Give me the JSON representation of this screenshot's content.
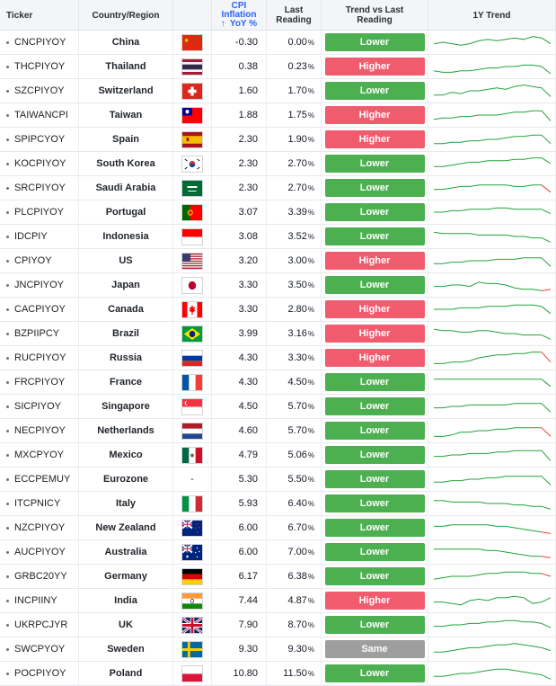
{
  "header": {
    "ticker": "Ticker",
    "country": "Country/Region",
    "cpi_line1": "CPI",
    "cpi_line2": "Inflation",
    "cpi_line3": "YoY %",
    "sort_arrow": "↑",
    "last_line1": "Last",
    "last_line2": "Reading",
    "trend_line1": "Trend vs Last",
    "trend_line2": "Reading",
    "spark": "1Y Trend"
  },
  "colors": {
    "lower": "#4caf50",
    "higher": "#f05b6e",
    "same": "#9e9e9e",
    "spark_up": "#22a33a",
    "spark_down": "#e8412f"
  },
  "rows": [
    {
      "ticker": "CNCPIYOY",
      "country": "China",
      "flag": "china",
      "cpi": "-0.30",
      "last": "0.00",
      "pct": "%",
      "trend": "Lower",
      "spark": [
        6,
        5,
        6,
        7,
        6,
        4,
        3,
        4,
        3,
        2,
        3,
        1,
        2,
        6
      ],
      "tail": "up"
    },
    {
      "ticker": "THCPIYOY",
      "country": "Thailand",
      "flag": "thailand",
      "cpi": "0.38",
      "last": "0.23",
      "pct": "%",
      "trend": "Higher",
      "spark": [
        8,
        9,
        9,
        8,
        8,
        7,
        6,
        6,
        5,
        5,
        4,
        4,
        5,
        10
      ],
      "tail": "up"
    },
    {
      "ticker": "SZCPIYOY",
      "country": "Switzerland",
      "flag": "switzerland",
      "cpi": "1.60",
      "last": "1.70",
      "pct": "%",
      "trend": "Lower",
      "spark": [
        8,
        8,
        6,
        7,
        5,
        5,
        4,
        3,
        4,
        2,
        1,
        2,
        3,
        9
      ],
      "tail": "up"
    },
    {
      "ticker": "TAIWANCPI",
      "country": "Taiwan",
      "flag": "taiwan",
      "cpi": "1.88",
      "last": "1.75",
      "pct": "%",
      "trend": "Higher",
      "spark": [
        8,
        7,
        7,
        6,
        6,
        5,
        5,
        5,
        4,
        3,
        3,
        2,
        2,
        9
      ],
      "tail": "up"
    },
    {
      "ticker": "SPIPCYOY",
      "country": "Spain",
      "flag": "spain",
      "cpi": "2.30",
      "last": "1.90",
      "pct": "%",
      "trend": "Higher",
      "spark": [
        8,
        8,
        7,
        7,
        6,
        6,
        5,
        5,
        4,
        3,
        3,
        2,
        2,
        8
      ],
      "tail": "up"
    },
    {
      "ticker": "KOCPIYOY",
      "country": "South Korea",
      "flag": "south_korea",
      "cpi": "2.30",
      "last": "2.70",
      "pct": "%",
      "trend": "Lower",
      "spark": [
        7,
        7,
        6,
        5,
        4,
        4,
        3,
        3,
        3,
        2,
        2,
        1,
        1,
        5
      ],
      "tail": "up"
    },
    {
      "ticker": "SRCPIYOY",
      "country": "Saudi Arabia",
      "flag": "saudi_arabia",
      "cpi": "2.30",
      "last": "2.70",
      "pct": "%",
      "trend": "Lower",
      "spark": [
        6,
        6,
        5,
        4,
        4,
        3,
        3,
        3,
        3,
        4,
        4,
        3,
        3,
        8
      ],
      "tail": "down"
    },
    {
      "ticker": "PLCPIYOY",
      "country": "Portugal",
      "flag": "portugal",
      "cpi": "3.07",
      "last": "3.39",
      "pct": "%",
      "trend": "Lower",
      "spark": [
        5,
        5,
        4,
        4,
        3,
        3,
        3,
        2,
        2,
        3,
        3,
        3,
        3,
        6
      ],
      "tail": "up"
    },
    {
      "ticker": "IDCPIY",
      "country": "Indonesia",
      "flag": "indonesia",
      "cpi": "3.08",
      "last": "3.52",
      "pct": "%",
      "trend": "Lower",
      "spark": [
        2,
        3,
        3,
        3,
        3,
        4,
        4,
        4,
        4,
        5,
        5,
        6,
        6,
        9
      ],
      "tail": "up"
    },
    {
      "ticker": "CPIYOY",
      "country": "US",
      "flag": "us",
      "cpi": "3.20",
      "last": "3.00",
      "pct": "%",
      "trend": "Higher",
      "spark": [
        7,
        7,
        6,
        6,
        5,
        5,
        5,
        4,
        4,
        4,
        3,
        3,
        3,
        9
      ],
      "tail": "up"
    },
    {
      "ticker": "JNCPIYOY",
      "country": "Japan",
      "flag": "japan",
      "cpi": "3.30",
      "last": "3.50",
      "pct": "%",
      "trend": "Lower",
      "spark": [
        6,
        6,
        5,
        5,
        6,
        3,
        4,
        4,
        5,
        7,
        8,
        8,
        9,
        8
      ],
      "tail": "down"
    },
    {
      "ticker": "CACPIYOY",
      "country": "Canada",
      "flag": "canada",
      "cpi": "3.30",
      "last": "2.80",
      "pct": "%",
      "trend": "Higher",
      "spark": [
        5,
        5,
        5,
        4,
        4,
        4,
        3,
        3,
        3,
        2,
        2,
        2,
        3,
        8
      ],
      "tail": "up"
    },
    {
      "ticker": "BZPIIPCY",
      "country": "Brazil",
      "flag": "brazil",
      "cpi": "3.99",
      "last": "3.16",
      "pct": "%",
      "trend": "Higher",
      "spark": [
        2,
        3,
        3,
        4,
        4,
        3,
        3,
        4,
        5,
        5,
        6,
        6,
        6,
        9
      ],
      "tail": "up"
    },
    {
      "ticker": "RUCPIYOY",
      "country": "Russia",
      "flag": "russia",
      "cpi": "4.30",
      "last": "3.30",
      "pct": "%",
      "trend": "Higher",
      "spark": [
        9,
        9,
        8,
        8,
        7,
        5,
        4,
        3,
        3,
        2,
        2,
        1,
        1,
        8
      ],
      "tail": "down"
    },
    {
      "ticker": "FRCPIYOY",
      "country": "France",
      "flag": "france",
      "cpi": "4.30",
      "last": "4.50",
      "pct": "%",
      "trend": "Lower",
      "spark": [
        3,
        3,
        3,
        3,
        3,
        3,
        3,
        3,
        3,
        3,
        3,
        3,
        3,
        8
      ],
      "tail": "up"
    },
    {
      "ticker": "SICPIYOY",
      "country": "Singapore",
      "flag": "singapore",
      "cpi": "4.50",
      "last": "5.70",
      "pct": "%",
      "trend": "Lower",
      "spark": [
        6,
        6,
        5,
        5,
        4,
        4,
        4,
        4,
        4,
        3,
        3,
        3,
        3,
        9
      ],
      "tail": "up"
    },
    {
      "ticker": "NECPIYOY",
      "country": "Netherlands",
      "flag": "netherlands",
      "cpi": "4.60",
      "last": "5.70",
      "pct": "%",
      "trend": "Lower",
      "spark": [
        9,
        9,
        8,
        6,
        6,
        5,
        5,
        4,
        4,
        3,
        3,
        3,
        3,
        9
      ],
      "tail": "down"
    },
    {
      "ticker": "MXCPYOY",
      "country": "Mexico",
      "flag": "mexico",
      "cpi": "4.79",
      "last": "5.06",
      "pct": "%",
      "trend": "Lower",
      "spark": [
        6,
        6,
        5,
        5,
        4,
        4,
        4,
        3,
        3,
        2,
        2,
        2,
        2,
        9
      ],
      "tail": "up"
    },
    {
      "ticker": "ECCPEMUY",
      "country": "Eurozone",
      "flag": "none",
      "cpi": "5.30",
      "last": "5.50",
      "pct": "%",
      "trend": "Lower",
      "spark": [
        7,
        7,
        6,
        6,
        5,
        5,
        4,
        4,
        3,
        3,
        3,
        3,
        3,
        9
      ],
      "tail": "up"
    },
    {
      "ticker": "ITCPNICY",
      "country": "Italy",
      "flag": "italy",
      "cpi": "5.93",
      "last": "6.40",
      "pct": "%",
      "trend": "Lower",
      "spark": [
        3,
        3,
        4,
        4,
        4,
        4,
        5,
        5,
        5,
        6,
        6,
        7,
        7,
        9
      ],
      "tail": "up"
    },
    {
      "ticker": "NZCPIYOY",
      "country": "New Zealand",
      "flag": "new_zealand",
      "cpi": "6.00",
      "last": "6.70",
      "pct": "%",
      "trend": "Lower",
      "spark": [
        4,
        4,
        3,
        3,
        3,
        3,
        3,
        4,
        4,
        5,
        6,
        7,
        8,
        9
      ],
      "tail": "down"
    },
    {
      "ticker": "AUCPIYOY",
      "country": "Australia",
      "flag": "australia",
      "cpi": "6.00",
      "last": "7.00",
      "pct": "%",
      "trend": "Lower",
      "spark": [
        3,
        3,
        3,
        3,
        3,
        3,
        4,
        4,
        5,
        6,
        7,
        8,
        8,
        9
      ],
      "tail": "down"
    },
    {
      "ticker": "GRBC20YY",
      "country": "Germany",
      "flag": "germany",
      "cpi": "6.17",
      "last": "6.38",
      "pct": "%",
      "trend": "Lower",
      "spark": [
        7,
        6,
        5,
        5,
        5,
        4,
        3,
        3,
        2,
        2,
        2,
        3,
        3,
        5
      ],
      "tail": "down"
    },
    {
      "ticker": "INCPIINY",
      "country": "India",
      "flag": "india",
      "cpi": "7.44",
      "last": "4.87",
      "pct": "%",
      "trend": "Higher",
      "spark": [
        6,
        6,
        7,
        8,
        5,
        4,
        5,
        3,
        3,
        2,
        3,
        7,
        6,
        3
      ],
      "tail": "up"
    },
    {
      "ticker": "UKRPCJYR",
      "country": "UK",
      "flag": "uk",
      "cpi": "7.90",
      "last": "8.70",
      "pct": "%",
      "trend": "Lower",
      "spark": [
        6,
        6,
        5,
        5,
        4,
        4,
        3,
        3,
        2,
        2,
        3,
        3,
        4,
        7
      ],
      "tail": "up"
    },
    {
      "ticker": "SWCPYOY",
      "country": "Sweden",
      "flag": "sweden",
      "cpi": "9.30",
      "last": "9.30",
      "pct": "%",
      "trend": "Same",
      "spark": [
        7,
        7,
        6,
        5,
        4,
        4,
        3,
        2,
        2,
        1,
        2,
        3,
        4,
        6
      ],
      "tail": "up"
    },
    {
      "ticker": "POCPIYOY",
      "country": "Poland",
      "flag": "poland",
      "cpi": "10.80",
      "last": "11.50",
      "pct": "%",
      "trend": "Lower",
      "spark": [
        7,
        7,
        6,
        5,
        5,
        4,
        3,
        2,
        2,
        3,
        4,
        5,
        6,
        9
      ],
      "tail": "up"
    }
  ]
}
